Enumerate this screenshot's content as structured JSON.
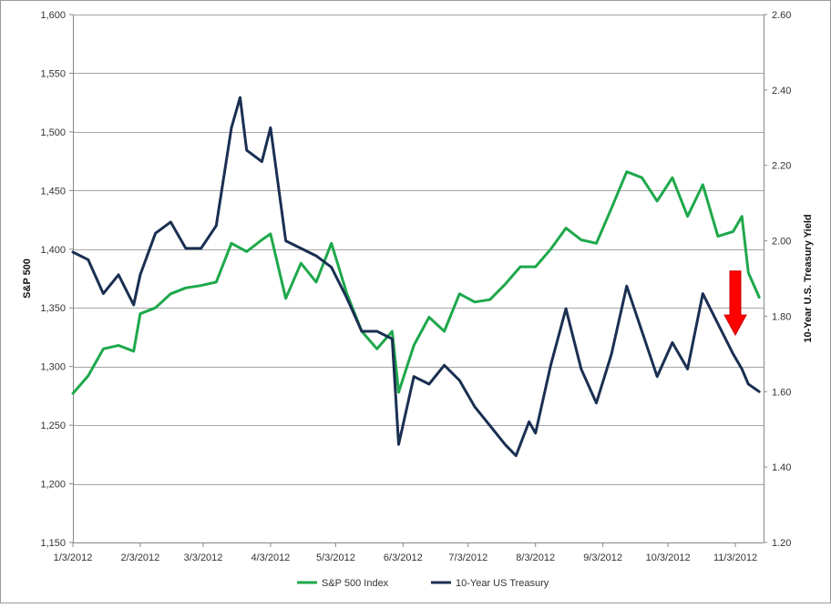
{
  "chart_data": {
    "type": "line",
    "title": "",
    "xlabel": "",
    "ylabel": "S&P 500",
    "y2label": "10-Year U.S. Treasury Yield",
    "x_tick_labels": [
      "1/3/2012",
      "2/3/2012",
      "3/3/2012",
      "4/3/2012",
      "5/3/2012",
      "6/3/2012",
      "7/3/2012",
      "8/3/2012",
      "9/3/2012",
      "10/3/2012",
      "11/3/2012"
    ],
    "ylim": [
      1150,
      1600
    ],
    "y_ticks": [
      1150,
      1200,
      1250,
      1300,
      1350,
      1400,
      1450,
      1500,
      1550,
      1600
    ],
    "y_tick_labels": [
      "1,150",
      "1,200",
      "1,250",
      "1,300",
      "1,350",
      "1,400",
      "1,450",
      "1,500",
      "1,550",
      "1,600"
    ],
    "y2lim": [
      1.2,
      2.6
    ],
    "y2_ticks": [
      1.2,
      1.4,
      1.6,
      1.8,
      2.0,
      2.2,
      2.4,
      2.6
    ],
    "y2_tick_labels": [
      "1.20",
      "1.40",
      "1.60",
      "1.80",
      "2.00",
      "2.20",
      "2.40",
      "2.60"
    ],
    "grid": "horizontal",
    "legend_position": "bottom",
    "series": [
      {
        "name": "S&P 500 Index",
        "axis": "left",
        "color": "#1ea84b",
        "x": [
          "2012-01-03",
          "2012-01-10",
          "2012-01-17",
          "2012-01-24",
          "2012-01-31",
          "2012-02-03",
          "2012-02-10",
          "2012-02-17",
          "2012-02-24",
          "2012-03-02",
          "2012-03-09",
          "2012-03-16",
          "2012-03-23",
          "2012-03-30",
          "2012-04-03",
          "2012-04-10",
          "2012-04-17",
          "2012-04-24",
          "2012-05-01",
          "2012-05-08",
          "2012-05-15",
          "2012-05-22",
          "2012-05-29",
          "2012-06-01",
          "2012-06-08",
          "2012-06-15",
          "2012-06-22",
          "2012-06-29",
          "2012-07-06",
          "2012-07-13",
          "2012-07-20",
          "2012-07-27",
          "2012-08-03",
          "2012-08-10",
          "2012-08-17",
          "2012-08-24",
          "2012-08-31",
          "2012-09-07",
          "2012-09-14",
          "2012-09-21",
          "2012-09-28",
          "2012-10-05",
          "2012-10-12",
          "2012-10-19",
          "2012-10-26",
          "2012-11-02",
          "2012-11-06",
          "2012-11-09",
          "2012-11-14"
        ],
        "y": [
          1277,
          1292,
          1315,
          1318,
          1313,
          1345,
          1350,
          1362,
          1367,
          1369,
          1372,
          1405,
          1398,
          1408,
          1413,
          1358,
          1388,
          1372,
          1405,
          1363,
          1330,
          1315,
          1330,
          1278,
          1318,
          1342,
          1330,
          1362,
          1355,
          1357,
          1370,
          1385,
          1385,
          1400,
          1418,
          1408,
          1405,
          1435,
          1466,
          1461,
          1441,
          1461,
          1428,
          1455,
          1411,
          1415,
          1428,
          1380,
          1359
        ]
      },
      {
        "name": "10-Year US Treasury",
        "axis": "right",
        "color": "#1a2f52",
        "x": [
          "2012-01-03",
          "2012-01-10",
          "2012-01-17",
          "2012-01-24",
          "2012-01-31",
          "2012-02-03",
          "2012-02-10",
          "2012-02-17",
          "2012-02-24",
          "2012-03-02",
          "2012-03-09",
          "2012-03-16",
          "2012-03-20",
          "2012-03-23",
          "2012-03-30",
          "2012-04-03",
          "2012-04-10",
          "2012-04-17",
          "2012-04-24",
          "2012-05-01",
          "2012-05-08",
          "2012-05-15",
          "2012-05-22",
          "2012-05-29",
          "2012-06-01",
          "2012-06-08",
          "2012-06-15",
          "2012-06-22",
          "2012-06-29",
          "2012-07-06",
          "2012-07-13",
          "2012-07-20",
          "2012-07-25",
          "2012-07-31",
          "2012-08-03",
          "2012-08-10",
          "2012-08-17",
          "2012-08-24",
          "2012-08-31",
          "2012-09-07",
          "2012-09-14",
          "2012-09-21",
          "2012-09-28",
          "2012-10-05",
          "2012-10-12",
          "2012-10-19",
          "2012-10-26",
          "2012-11-02",
          "2012-11-06",
          "2012-11-09",
          "2012-11-14"
        ],
        "y": [
          1.97,
          1.95,
          1.86,
          1.91,
          1.83,
          1.91,
          2.02,
          2.05,
          1.98,
          1.98,
          2.04,
          2.3,
          2.38,
          2.24,
          2.21,
          2.3,
          2.0,
          1.98,
          1.96,
          1.93,
          1.85,
          1.76,
          1.76,
          1.74,
          1.46,
          1.64,
          1.62,
          1.67,
          1.63,
          1.56,
          1.51,
          1.46,
          1.43,
          1.52,
          1.49,
          1.67,
          1.82,
          1.66,
          1.57,
          1.7,
          1.88,
          1.76,
          1.64,
          1.73,
          1.66,
          1.86,
          1.78,
          1.7,
          1.66,
          1.62,
          1.6
        ]
      }
    ]
  },
  "annotation": {
    "type": "down-arrow",
    "color": "#ff0000"
  }
}
